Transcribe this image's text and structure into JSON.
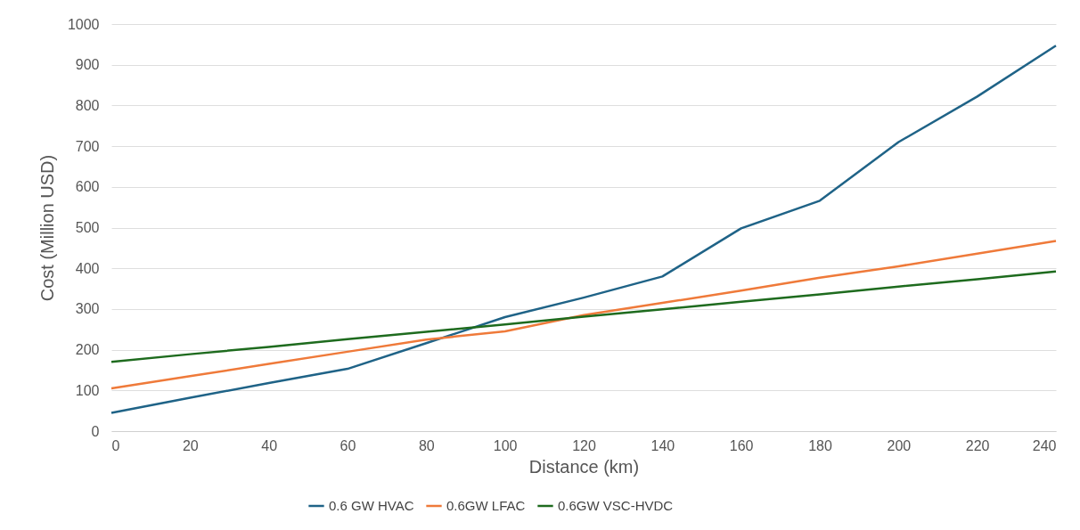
{
  "chart_data": {
    "type": "line",
    "xlabel": "Distance (km)",
    "ylabel": "Cost (Million USD)",
    "x": [
      0,
      20,
      40,
      60,
      80,
      100,
      120,
      140,
      160,
      180,
      200,
      220,
      240
    ],
    "series": [
      {
        "name": "0.6 GW HVAC",
        "color": "#1f6387",
        "values": [
          45,
          82,
          118,
          153,
          216,
          280,
          328,
          380,
          498,
          566,
          710,
          822,
          947
        ]
      },
      {
        "name": "0.6GW LFAC",
        "color": "#ef7a3a",
        "values": [
          105,
          135,
          165,
          195,
          225,
          245,
          285,
          315,
          345,
          377,
          405,
          436,
          467
        ]
      },
      {
        "name": "0.6GW VSC-HVDC",
        "color": "#1e6b1e",
        "values": [
          170,
          189,
          207,
          226,
          244,
          262,
          281,
          299,
          318,
          336,
          355,
          373,
          392
        ]
      }
    ],
    "xlim": [
      0,
      240
    ],
    "xticks": [
      0,
      20,
      40,
      60,
      80,
      100,
      120,
      140,
      160,
      180,
      200,
      220,
      240
    ],
    "ylim": [
      0,
      1000
    ],
    "yticks": [
      0,
      100,
      200,
      300,
      400,
      500,
      600,
      700,
      800,
      900,
      1000
    ],
    "grid": "y",
    "legend": "bottom",
    "marker": "none",
    "line_style": "solid"
  }
}
